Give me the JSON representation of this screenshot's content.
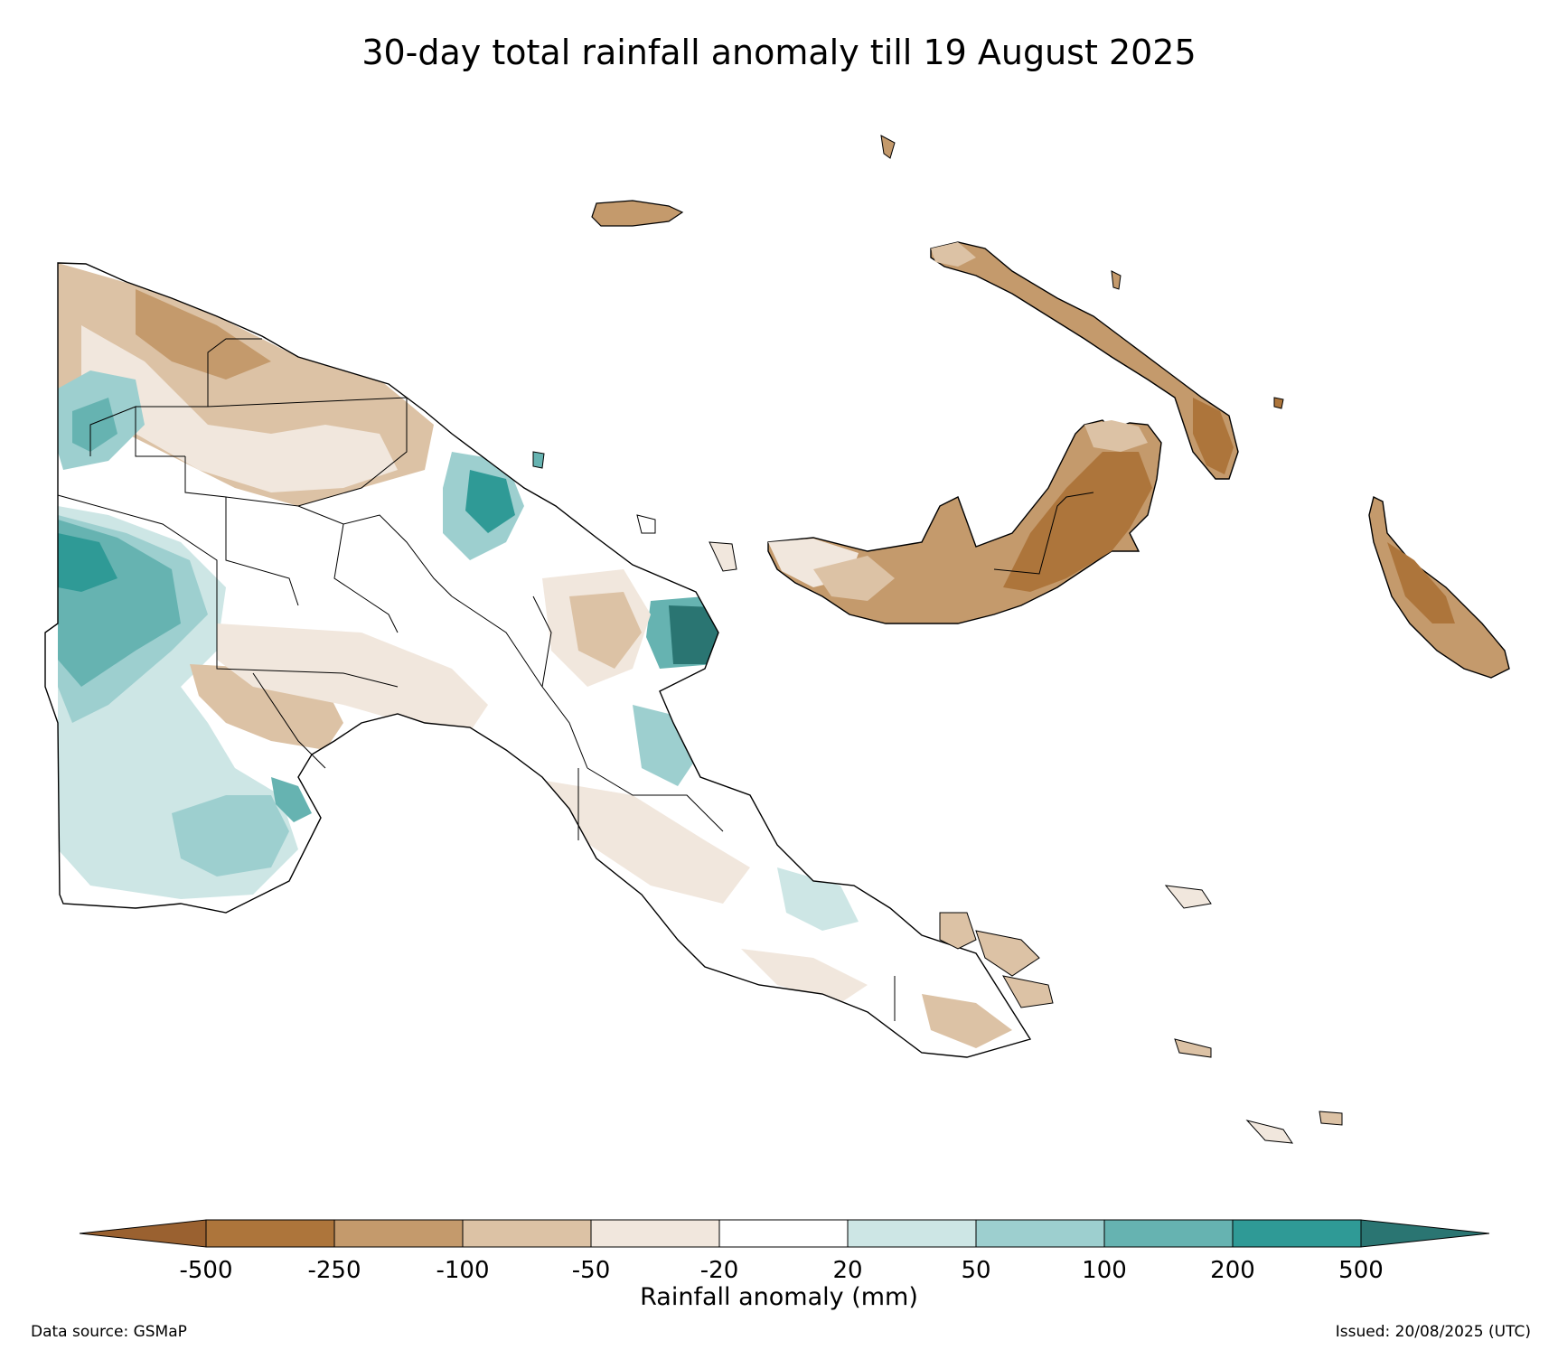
{
  "title": "30-day total rainfall anomaly till 19 August 2025",
  "colorbar": {
    "label": "Rainfall anomaly (mm)",
    "ticks": [
      "-500",
      "-250",
      "-100",
      "-50",
      "-20",
      "20",
      "50",
      "100",
      "200",
      "500"
    ],
    "bins": [
      {
        "name": "below-500",
        "color": "#9a6130"
      },
      {
        "name": "-500-to-250",
        "color": "#ad753b"
      },
      {
        "name": "-250-to-100",
        "color": "#c49a6c"
      },
      {
        "name": "-100-to-50",
        "color": "#dcc2a5"
      },
      {
        "name": "-50-to-20",
        "color": "#f1e7dd"
      },
      {
        "name": "-20-to-20",
        "color": "#ffffff"
      },
      {
        "name": "20-to-50",
        "color": "#cde6e5"
      },
      {
        "name": "50-to-100",
        "color": "#9dcfcf"
      },
      {
        "name": "100-to-200",
        "color": "#66b3b1"
      },
      {
        "name": "200-to-500",
        "color": "#2f9a96"
      },
      {
        "name": "above-500",
        "color": "#2a7572"
      }
    ]
  },
  "footer": {
    "data_source": "Data source: GSMaP",
    "issued": "Issued: 20/08/2025 (UTC)"
  }
}
